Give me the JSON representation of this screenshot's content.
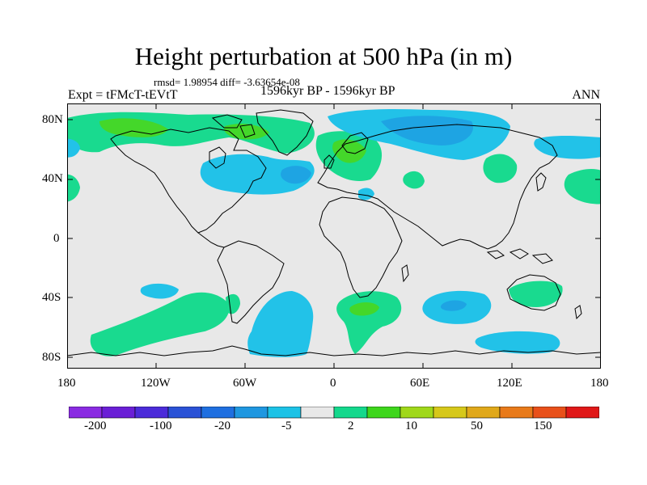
{
  "title": "Height perturbation at 500 hPa (in m)",
  "stats": "rmsd= 1.98954 diff= -3.63654e-08",
  "experiment": "Expt = tFMcT-tEVtT",
  "period": "1596kyr BP - 1596kyr BP",
  "season": "ANN",
  "axes": {
    "lat_ticks": [
      "80N",
      "40N",
      "0",
      "40S",
      "80S"
    ],
    "lon_ticks": [
      "180",
      "120W",
      "60W",
      "0",
      "60E",
      "120E",
      "180"
    ]
  },
  "colorbar": {
    "labels": [
      "-200",
      "-100",
      "-20",
      "-5",
      "2",
      "10",
      "50",
      "150"
    ],
    "colors": [
      "#8a2be2",
      "#6a1fd6",
      "#4b2bd9",
      "#2a52d6",
      "#1f6fe0",
      "#1f97e0",
      "#1cc2e6",
      "#e8e8e8",
      "#14d88c",
      "#3ed61c",
      "#a0d81a",
      "#d6c81a",
      "#e0a81a",
      "#e87a1a",
      "#e8501a",
      "#e01818"
    ]
  },
  "colors": {
    "background": "#e8e8e8",
    "positive_fill": "#19da8f",
    "strong_positive_fill": "#44d72a",
    "negative_fill": "#22c2e8",
    "strong_negative_fill": "#1ea4e3",
    "coastline": "#000000"
  }
}
